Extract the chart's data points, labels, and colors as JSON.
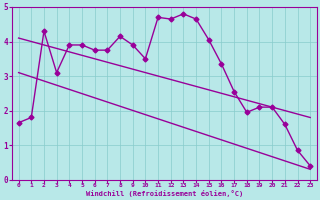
{
  "title": "",
  "xlabel": "Windchill (Refroidissement éolien,°C)",
  "ylabel": "",
  "bg_color": "#b8e8e8",
  "line_color": "#990099",
  "xlim": [
    -0.5,
    23.5
  ],
  "ylim": [
    0,
    5
  ],
  "xticks": [
    0,
    1,
    2,
    3,
    4,
    5,
    6,
    7,
    8,
    9,
    10,
    11,
    12,
    13,
    14,
    15,
    16,
    17,
    18,
    19,
    20,
    21,
    22,
    23
  ],
  "yticks": [
    0,
    1,
    2,
    3,
    4,
    5
  ],
  "grid_color": "#88cccc",
  "series1_x": [
    0,
    1,
    2,
    3,
    4,
    5,
    6,
    7,
    8,
    9,
    10,
    11,
    12,
    13,
    14,
    15,
    16,
    17,
    18,
    19,
    20,
    21,
    22,
    23
  ],
  "series1_y": [
    1.65,
    1.8,
    4.3,
    3.1,
    3.9,
    3.9,
    3.75,
    3.75,
    4.15,
    3.9,
    3.5,
    4.7,
    4.65,
    4.8,
    4.65,
    4.05,
    3.35,
    2.55,
    1.95,
    2.1,
    2.1,
    1.6,
    0.85,
    0.4
  ],
  "series2_x": [
    0,
    23
  ],
  "series2_y": [
    4.1,
    1.8
  ],
  "series3_x": [
    0,
    23
  ],
  "series3_y": [
    3.1,
    0.3
  ],
  "marker": "D",
  "marker_size": 2.5,
  "linewidth": 1.0
}
